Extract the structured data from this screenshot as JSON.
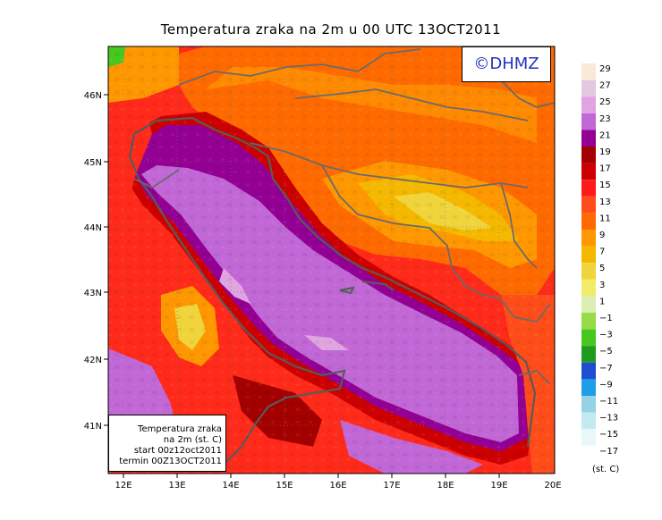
{
  "title": "Temperatura zraka na 2m u 00 UTC 13OCT2011",
  "copyright": "©DHMZ",
  "info": {
    "line1": "Temperatura zraka",
    "line2": "na 2m (st. C)",
    "line3": "start 00z12oct2011",
    "line4": "termin 00Z13OCT2011"
  },
  "lon_ticks": [
    "12E",
    "13E",
    "14E",
    "15E",
    "16E",
    "17E",
    "18E",
    "19E",
    "20E"
  ],
  "lat_ticks": [
    "46N",
    "45N",
    "44N",
    "43N",
    "42N",
    "41N"
  ],
  "legend": {
    "unit": "(st. C)",
    "labels": [
      "29",
      "27",
      "25",
      "23",
      "21",
      "19",
      "17",
      "15",
      "13",
      "11",
      "9",
      "7",
      "5",
      "3",
      "1",
      "−1",
      "−3",
      "−5",
      "−7",
      "−9",
      "−11",
      "−13",
      "−15",
      "−17"
    ],
    "colors": [
      "#fbe9d7",
      "#e3c8e0",
      "#e0a5e0",
      "#c167d6",
      "#930093",
      "#a30000",
      "#cc0000",
      "#ff1a1a",
      "#ff4d1a",
      "#ff6a00",
      "#ff9700",
      "#f5b800",
      "#f0d43c",
      "#f0ec6a",
      "#dceeb2",
      "#96dc46",
      "#46c81e",
      "#1e9c1e",
      "#1e4dd2",
      "#1e9ee6",
      "#96d2e6",
      "#c3eaf0",
      "#eaf7f9",
      "#ffffff"
    ]
  }
}
